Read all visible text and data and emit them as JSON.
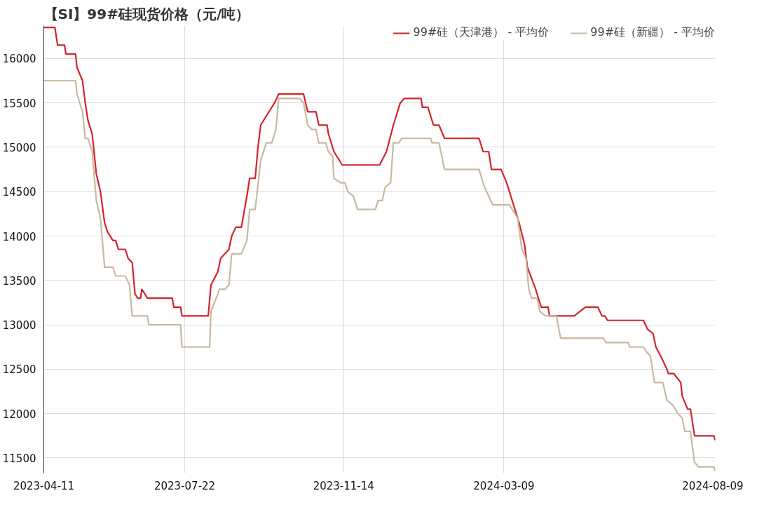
{
  "chart_data": {
    "type": "line",
    "title": "【SI】99#硅现货价格（元/吨）",
    "xlim": [
      "2023-04-11",
      "2024-08-09"
    ],
    "xticks": [
      {
        "value": "2023-04-11",
        "label": "2023-04-11"
      },
      {
        "value": "2023-07-22",
        "label": "2023-07-22"
      },
      {
        "value": "2023-11-14",
        "label": "2023-11-14"
      },
      {
        "value": "2024-03-09",
        "label": "2024-03-09"
      },
      {
        "value": "2024-08-09",
        "label": "2024-08-09"
      }
    ],
    "ylim": [
      11330,
      16370
    ],
    "yticks": [
      11500,
      12000,
      12500,
      13000,
      13500,
      14000,
      14500,
      15000,
      15500,
      16000
    ],
    "grid": true,
    "legend": "top right",
    "line_style": "solid",
    "series": [
      {
        "name": "99#硅（天津港） - 平均价",
        "color": "#d2232a",
        "x": [
          "2023-04-11",
          "2023-04-19",
          "2023-04-21",
          "2023-04-26",
          "2023-04-27",
          "2023-05-04",
          "2023-05-05",
          "2023-05-09",
          "2023-05-11",
          "2023-05-13",
          "2023-05-16",
          "2023-05-19",
          "2023-05-22",
          "2023-05-25",
          "2023-05-27",
          "2023-05-31",
          "2023-06-02",
          "2023-06-04",
          "2023-06-09",
          "2023-06-11",
          "2023-06-14",
          "2023-06-16",
          "2023-06-18",
          "2023-06-20",
          "2023-06-21",
          "2023-06-25",
          "2023-07-13",
          "2023-07-14",
          "2023-07-19",
          "2023-07-20",
          "2023-08-08",
          "2023-08-10",
          "2023-08-15",
          "2023-08-17",
          "2023-08-23",
          "2023-08-25",
          "2023-08-28",
          "2023-09-01",
          "2023-09-05",
          "2023-09-07",
          "2023-09-11",
          "2023-09-13",
          "2023-09-15",
          "2023-09-21",
          "2023-09-25",
          "2023-09-28",
          "2023-10-16",
          "2023-10-19",
          "2023-10-25",
          "2023-10-27",
          "2023-11-02",
          "2023-11-03",
          "2023-11-07",
          "2023-11-13",
          "2023-12-10",
          "2023-12-15",
          "2023-12-20",
          "2023-12-25",
          "2023-12-28",
          "2024-01-09",
          "2024-01-10",
          "2024-01-14",
          "2024-01-18",
          "2024-01-22",
          "2024-01-26",
          "2024-02-20",
          "2024-02-23",
          "2024-02-27",
          "2024-02-29",
          "2024-03-07",
          "2024-03-11",
          "2024-03-15",
          "2024-03-20",
          "2024-03-24",
          "2024-03-26",
          "2024-04-01",
          "2024-04-05",
          "2024-04-10",
          "2024-04-11",
          "2024-04-29",
          "2024-05-07",
          "2024-05-16",
          "2024-05-19",
          "2024-05-21",
          "2024-05-23",
          "2024-06-18",
          "2024-06-21",
          "2024-06-25",
          "2024-06-27",
          "2024-07-02",
          "2024-07-05",
          "2024-07-06",
          "2024-07-10",
          "2024-07-15",
          "2024-07-16",
          "2024-07-20",
          "2024-07-22",
          "2024-07-25",
          "2024-08-08",
          "2024-08-09"
        ],
        "values": [
          16350,
          16350,
          16150,
          16150,
          16050,
          16050,
          15900,
          15750,
          15500,
          15300,
          15150,
          14700,
          14500,
          14150,
          14050,
          13950,
          13950,
          13850,
          13850,
          13750,
          13700,
          13350,
          13300,
          13300,
          13400,
          13300,
          13300,
          13200,
          13200,
          13100,
          13100,
          13450,
          13600,
          13750,
          13850,
          14000,
          14100,
          14100,
          14450,
          14650,
          14650,
          15000,
          15250,
          15400,
          15500,
          15600,
          15600,
          15400,
          15400,
          15250,
          15250,
          15150,
          14950,
          14800,
          14800,
          14950,
          15250,
          15500,
          15550,
          15550,
          15450,
          15450,
          15250,
          15250,
          15100,
          15100,
          14950,
          14950,
          14750,
          14750,
          14600,
          14400,
          14150,
          13900,
          13650,
          13400,
          13200,
          13200,
          13100,
          13100,
          13200,
          13200,
          13100,
          13100,
          13050,
          13050,
          12950,
          12900,
          12750,
          12600,
          12500,
          12450,
          12450,
          12350,
          12200,
          12050,
          12050,
          11750,
          11750,
          11700
        ]
      },
      {
        "name": "99#硅（新疆） - 平均价",
        "color": "#c8b9a0",
        "x": [
          "2023-04-11",
          "2023-05-04",
          "2023-05-05",
          "2023-05-09",
          "2023-05-11",
          "2023-05-13",
          "2023-05-16",
          "2023-05-19",
          "2023-05-22",
          "2023-05-25",
          "2023-05-31",
          "2023-06-02",
          "2023-06-09",
          "2023-06-12",
          "2023-06-14",
          "2023-06-25",
          "2023-06-26",
          "2023-07-19",
          "2023-07-20",
          "2023-08-09",
          "2023-08-10",
          "2023-08-15",
          "2023-08-16",
          "2023-08-20",
          "2023-08-23",
          "2023-08-25",
          "2023-09-01",
          "2023-09-05",
          "2023-09-07",
          "2023-09-11",
          "2023-09-15",
          "2023-09-19",
          "2023-09-23",
          "2023-09-26",
          "2023-09-28",
          "2023-10-13",
          "2023-10-16",
          "2023-10-19",
          "2023-10-22",
          "2023-10-25",
          "2023-10-27",
          "2023-11-01",
          "2023-11-03",
          "2023-11-06",
          "2023-11-07",
          "2023-11-12",
          "2023-11-15",
          "2023-11-17",
          "2023-11-21",
          "2023-11-24",
          "2023-12-07",
          "2023-12-09",
          "2023-12-12",
          "2023-12-14",
          "2023-12-18",
          "2023-12-20",
          "2023-12-24",
          "2023-12-26",
          "2024-01-16",
          "2024-01-17",
          "2024-01-22",
          "2024-01-26",
          "2024-02-20",
          "2024-02-24",
          "2024-02-27",
          "2024-03-01",
          "2024-03-13",
          "2024-03-15",
          "2024-03-19",
          "2024-03-22",
          "2024-03-25",
          "2024-03-27",
          "2024-03-29",
          "2024-04-02",
          "2024-04-04",
          "2024-04-08",
          "2024-04-16",
          "2024-04-19",
          "2024-05-20",
          "2024-05-22",
          "2024-06-07",
          "2024-06-08",
          "2024-06-18",
          "2024-06-20",
          "2024-06-23",
          "2024-06-26",
          "2024-07-02",
          "2024-07-05",
          "2024-07-09",
          "2024-07-13",
          "2024-07-16",
          "2024-07-18",
          "2024-07-22",
          "2024-07-25",
          "2024-07-28",
          "2024-08-08",
          "2024-08-09"
        ],
        "values": [
          15750,
          15750,
          15600,
          15400,
          15100,
          15100,
          14950,
          14400,
          14200,
          13650,
          13650,
          13550,
          13550,
          13450,
          13100,
          13100,
          13000,
          13000,
          12750,
          12750,
          13150,
          13350,
          13400,
          13400,
          13450,
          13800,
          13800,
          13950,
          14300,
          14300,
          14850,
          15050,
          15050,
          15200,
          15550,
          15550,
          15500,
          15250,
          15200,
          15200,
          15050,
          15050,
          14950,
          14900,
          14650,
          14600,
          14600,
          14500,
          14450,
          14300,
          14300,
          14400,
          14400,
          14550,
          14600,
          15050,
          15050,
          15100,
          15100,
          15050,
          15050,
          14750,
          14750,
          14550,
          14450,
          14350,
          14350,
          14300,
          14200,
          13850,
          13750,
          13400,
          13300,
          13300,
          13150,
          13100,
          13100,
          12850,
          12850,
          12800,
          12800,
          12750,
          12750,
          12700,
          12650,
          12350,
          12350,
          12150,
          12100,
          12000,
          11950,
          11800,
          11800,
          11450,
          11400,
          11400,
          11350
        ]
      }
    ]
  }
}
